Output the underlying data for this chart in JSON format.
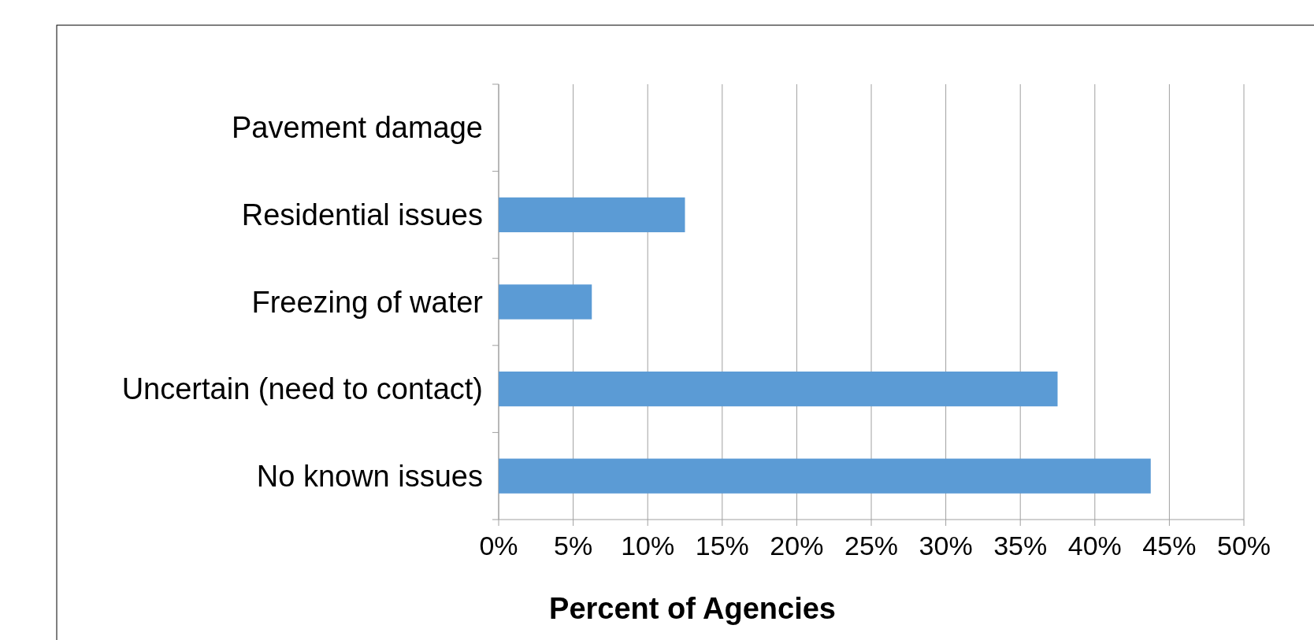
{
  "chart_data": {
    "type": "bar",
    "orientation": "horizontal",
    "xlabel": "Percent of Agencies",
    "categories": [
      "Pavement damage",
      "Residential issues",
      "Freezing of water",
      "Uncertain (need to contact)",
      "No known issues"
    ],
    "values": [
      0,
      12.5,
      6.25,
      37.5,
      43.75
    ],
    "color": "#5b9bd5",
    "xlim": [
      0,
      50
    ],
    "xticks": [
      {
        "value": 0,
        "label": "0%"
      },
      {
        "value": 5,
        "label": "5%"
      },
      {
        "value": 10,
        "label": "10%"
      },
      {
        "value": 15,
        "label": "15%"
      },
      {
        "value": 20,
        "label": "20%"
      },
      {
        "value": 25,
        "label": "25%"
      },
      {
        "value": 30,
        "label": "30%"
      },
      {
        "value": 35,
        "label": "35%"
      },
      {
        "value": 40,
        "label": "40%"
      },
      {
        "value": 45,
        "label": "45%"
      },
      {
        "value": 50,
        "label": "50%"
      }
    ],
    "grid": "x"
  }
}
